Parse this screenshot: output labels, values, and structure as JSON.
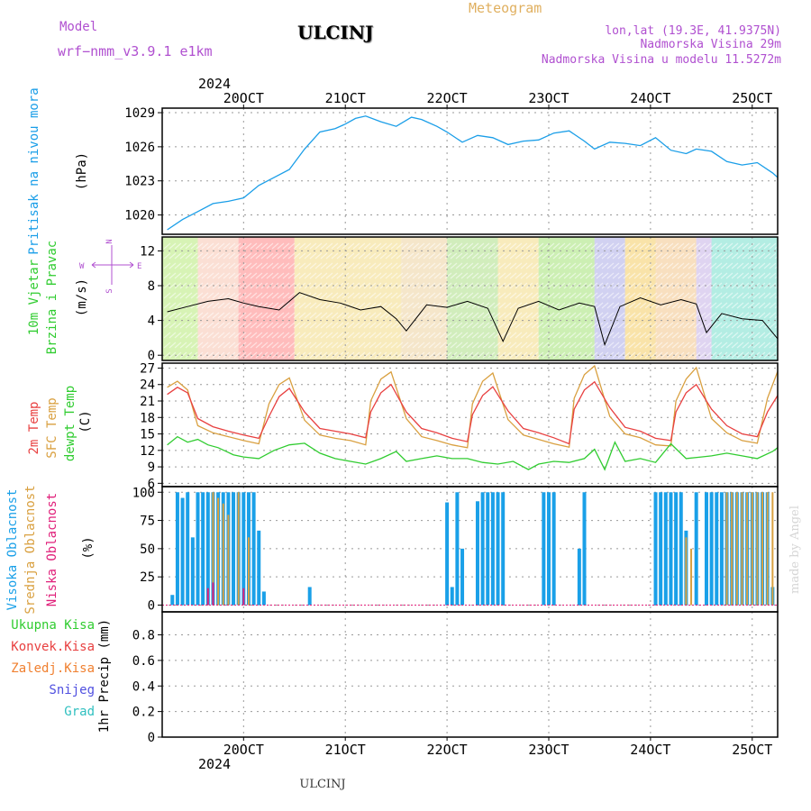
{
  "header": {
    "model_label": "Model",
    "model_name": "wrf−nmm_v3.9.1 e1km",
    "title": "ULCINJ",
    "subtitle": "Meteogram",
    "lonlat": "lon,lat (19.3E, 41.9375N)",
    "elev": "Nadmorska Visina 29m",
    "elev_model": "Nadmorska Visina u modelu 11.5272m",
    "top_year": "2024",
    "bottom_year": "2024",
    "footer": "ULCINJ",
    "watermark": "made by Angel"
  },
  "x_axis": {
    "tick_labels": [
      "20OCT",
      "21OCT",
      "22OCT",
      "23OCT",
      "24OCT",
      "25OCT"
    ],
    "range_days": [
      -0.8,
      5.25
    ]
  },
  "panels": {
    "pressure": {
      "label1": "Pritisak na nivou mora",
      "unit": "(hPa)"
    },
    "wind": {
      "label1": "10m Vjetar",
      "label2": "Brzina i Pravac",
      "unit": "(m/s)",
      "compass_n": "N",
      "compass_w": "W",
      "compass_e": "E",
      "compass_s": "S"
    },
    "temp": {
      "label1": "2m Temp",
      "label2": "SFC Temp",
      "label3": "dewpt Temp",
      "unit": "(C)"
    },
    "cloud": {
      "label1": "Visoka Oblacnost",
      "label2": "Srednja Oblacnost",
      "label3": "Niska Oblacnost",
      "unit": "(%)"
    },
    "precip": {
      "legend": [
        "Ukupna Kisa",
        "Konvek.Kisa",
        "Zaledj.Kisa",
        "Snijeg",
        "Grad"
      ],
      "unit": "1hr Precip (mm)"
    }
  },
  "colors": {
    "pressure": "#1a9ee8",
    "t2m": "#e84040",
    "sfc": "#d9a040",
    "dewpt": "#30cc30",
    "wind_mean": "#000000",
    "cloud_high": "#1aa0e8",
    "cloud_mid": "#d9a040",
    "cloud_low": "#e0207a",
    "precip_total": "#30cc30",
    "precip_conv": "#e84040",
    "precip_frz": "#f08030",
    "precip_snow": "#5050e0",
    "precip_grad": "#30c0c0"
  },
  "chart_data": [
    {
      "type": "line",
      "title": "Pritisak na nivou mora",
      "ylabel": "(hPa)",
      "ylim": [
        1018.3,
        1029.4
      ],
      "yticks": [
        1020,
        1023,
        1026,
        1029
      ],
      "x_unit": "days relative to 20OCT 00Z",
      "series": [
        {
          "name": "Pritisak na nivou mora",
          "x": [
            -0.75,
            -0.6,
            -0.45,
            -0.3,
            -0.15,
            0,
            0.15,
            0.3,
            0.45,
            0.6,
            0.75,
            0.9,
            1.0,
            1.1,
            1.2,
            1.35,
            1.5,
            1.65,
            1.75,
            1.9,
            2.0,
            2.15,
            2.3,
            2.45,
            2.6,
            2.75,
            2.9,
            3.05,
            3.2,
            3.35,
            3.45,
            3.6,
            3.75,
            3.9,
            4.05,
            4.2,
            4.35,
            4.45,
            4.6,
            4.75,
            4.9,
            5.05,
            5.2,
            5.25
          ],
          "y": [
            1018.7,
            1019.6,
            1020.3,
            1021.0,
            1021.2,
            1021.5,
            1022.6,
            1023.3,
            1024.0,
            1025.8,
            1027.3,
            1027.6,
            1028.0,
            1028.5,
            1028.7,
            1028.2,
            1027.8,
            1028.6,
            1028.4,
            1027.8,
            1027.3,
            1026.4,
            1027.0,
            1026.8,
            1026.2,
            1026.5,
            1026.6,
            1027.2,
            1027.4,
            1026.5,
            1025.8,
            1026.4,
            1026.3,
            1026.1,
            1026.8,
            1025.7,
            1025.4,
            1025.8,
            1025.6,
            1024.7,
            1024.4,
            1024.6,
            1023.7,
            1023.3
          ]
        }
      ]
    },
    {
      "type": "line",
      "title": "10m Vjetar Brzina i Pravac",
      "ylabel": "(m/s)",
      "ylim": [
        -0.6,
        13.6
      ],
      "yticks": [
        0,
        4,
        8,
        12
      ],
      "series": [
        {
          "name": "Brzina",
          "x": [
            -0.75,
            -0.55,
            -0.35,
            -0.15,
            0.0,
            0.15,
            0.35,
            0.55,
            0.75,
            0.95,
            1.15,
            1.35,
            1.5,
            1.6,
            1.8,
            2.0,
            2.2,
            2.4,
            2.55,
            2.7,
            2.9,
            3.1,
            3.3,
            3.45,
            3.55,
            3.7,
            3.9,
            4.1,
            4.3,
            4.45,
            4.55,
            4.7,
            4.9,
            5.1,
            5.25
          ],
          "y": [
            5.0,
            5.6,
            6.2,
            6.5,
            6.0,
            5.6,
            5.2,
            7.2,
            6.4,
            6.0,
            5.2,
            5.6,
            4.2,
            2.8,
            5.8,
            5.5,
            6.2,
            5.4,
            1.6,
            5.4,
            6.2,
            5.2,
            6.0,
            5.6,
            1.2,
            5.6,
            6.6,
            5.8,
            6.4,
            5.9,
            2.6,
            4.8,
            4.2,
            4.0,
            1.9
          ]
        }
      ]
    },
    {
      "type": "line",
      "title": "2m Temp / SFC Temp / dewpt Temp",
      "ylabel": "(C)",
      "ylim": [
        5.4,
        27.9
      ],
      "yticks": [
        6,
        9,
        12,
        15,
        18,
        21,
        24,
        27
      ],
      "series": [
        {
          "name": "2m Temp",
          "x": [
            -0.75,
            -0.65,
            -0.55,
            -0.45,
            -0.3,
            -0.15,
            0.0,
            0.15,
            0.25,
            0.35,
            0.45,
            0.6,
            0.75,
            0.9,
            1.05,
            1.2,
            1.25,
            1.35,
            1.45,
            1.6,
            1.75,
            1.9,
            2.05,
            2.2,
            2.25,
            2.35,
            2.45,
            2.6,
            2.75,
            2.9,
            3.05,
            3.2,
            3.25,
            3.35,
            3.45,
            3.6,
            3.75,
            3.9,
            4.05,
            4.2,
            4.25,
            4.35,
            4.45,
            4.6,
            4.75,
            4.9,
            5.05,
            5.15,
            5.25
          ],
          "y": [
            22.2,
            23.5,
            22.5,
            17.8,
            16.3,
            15.5,
            14.8,
            14.2,
            18.2,
            21.8,
            23.3,
            19.0,
            16.0,
            15.5,
            15.0,
            14.3,
            19.0,
            22.5,
            24.0,
            19.0,
            16.0,
            15.2,
            14.2,
            13.6,
            18.5,
            22.0,
            23.6,
            19.2,
            16.0,
            15.2,
            14.3,
            13.2,
            19.5,
            23.0,
            24.5,
            19.8,
            16.2,
            15.5,
            14.2,
            13.8,
            19.0,
            22.5,
            24.0,
            19.5,
            16.5,
            15.0,
            14.5,
            19.0,
            22.0
          ]
        },
        {
          "name": "SFC Temp",
          "x": [
            -0.75,
            -0.65,
            -0.55,
            -0.45,
            -0.3,
            -0.15,
            0.0,
            0.15,
            0.25,
            0.35,
            0.45,
            0.6,
            0.75,
            0.9,
            1.05,
            1.2,
            1.25,
            1.35,
            1.45,
            1.6,
            1.75,
            1.9,
            2.05,
            2.2,
            2.25,
            2.35,
            2.45,
            2.6,
            2.75,
            2.9,
            3.05,
            3.2,
            3.25,
            3.35,
            3.45,
            3.6,
            3.75,
            3.9,
            4.05,
            4.2,
            4.25,
            4.35,
            4.45,
            4.6,
            4.75,
            4.9,
            5.05,
            5.15,
            5.25
          ],
          "y": [
            23.5,
            24.6,
            23.0,
            16.5,
            15.2,
            14.5,
            13.8,
            13.2,
            20.5,
            24.0,
            25.2,
            17.5,
            14.8,
            14.2,
            13.8,
            13.0,
            21.0,
            25.0,
            26.3,
            17.8,
            14.5,
            13.8,
            13.0,
            12.5,
            20.5,
            24.6,
            26.1,
            17.6,
            14.8,
            14.0,
            13.2,
            12.6,
            21.5,
            25.8,
            27.4,
            18.2,
            15.0,
            14.3,
            13.0,
            12.8,
            21.0,
            25.0,
            27.1,
            17.8,
            15.2,
            13.8,
            13.3,
            21.5,
            26.4
          ]
        },
        {
          "name": "dewpt Temp",
          "x": [
            -0.75,
            -0.65,
            -0.55,
            -0.45,
            -0.35,
            -0.25,
            -0.1,
            0.0,
            0.15,
            0.3,
            0.45,
            0.6,
            0.75,
            0.9,
            1.05,
            1.2,
            1.35,
            1.5,
            1.6,
            1.75,
            1.9,
            2.05,
            2.2,
            2.35,
            2.5,
            2.65,
            2.8,
            2.9,
            3.05,
            3.2,
            3.35,
            3.45,
            3.55,
            3.65,
            3.75,
            3.9,
            4.05,
            4.2,
            4.35,
            4.5,
            4.6,
            4.75,
            4.9,
            5.05,
            5.2,
            5.25
          ],
          "y": [
            13.0,
            14.5,
            13.5,
            14.0,
            13.0,
            12.5,
            11.2,
            10.8,
            10.5,
            12.0,
            13.0,
            13.3,
            11.5,
            10.5,
            10.0,
            9.5,
            10.5,
            11.8,
            10.0,
            10.5,
            11.0,
            10.5,
            10.5,
            9.8,
            9.5,
            10.0,
            8.5,
            9.5,
            10.0,
            9.8,
            10.5,
            12.2,
            8.5,
            13.5,
            10.0,
            10.5,
            9.8,
            13.2,
            10.5,
            10.8,
            11.0,
            11.5,
            11.0,
            10.5,
            11.8,
            12.5
          ]
        }
      ]
    },
    {
      "type": "bar",
      "title": "Oblacnost",
      "ylabel": "(%)",
      "ylim": [
        -6,
        105
      ],
      "yticks": [
        0,
        25,
        50,
        75,
        100
      ],
      "series": [
        {
          "name": "Visoka Oblacnost",
          "x": [
            -0.7,
            -0.65,
            -0.6,
            -0.55,
            -0.5,
            -0.45,
            -0.4,
            -0.35,
            -0.3,
            -0.25,
            -0.2,
            -0.15,
            -0.1,
            -0.05,
            0.0,
            0.05,
            0.1,
            0.15,
            0.2,
            0.25,
            0.65,
            2.0,
            2.05,
            2.1,
            2.15,
            2.2,
            2.3,
            2.35,
            2.4,
            2.45,
            2.5,
            2.55,
            2.6,
            2.95,
            3.0,
            3.05,
            3.3,
            3.35,
            4.05,
            4.1,
            4.15,
            4.2,
            4.25,
            4.3,
            4.35,
            4.4,
            4.45,
            4.55,
            4.6,
            4.65,
            4.7,
            4.75,
            4.8,
            4.85,
            4.9,
            4.95,
            5.0,
            5.05,
            5.1,
            5.15,
            5.2
          ],
          "y": [
            9,
            100,
            95,
            100,
            60,
            100,
            100,
            100,
            100,
            100,
            100,
            100,
            100,
            100,
            100,
            100,
            100,
            66,
            12,
            0,
            16,
            91,
            16,
            100,
            50,
            0,
            92,
            100,
            100,
            100,
            100,
            100,
            0,
            100,
            100,
            100,
            50,
            100,
            100,
            100,
            100,
            100,
            100,
            100,
            66,
            0,
            100,
            100,
            100,
            100,
            100,
            100,
            100,
            100,
            100,
            100,
            100,
            100,
            100,
            100,
            16
          ]
        },
        {
          "name": "Srednja Oblacnost",
          "x": [
            -0.3,
            -0.25,
            -0.2,
            -0.15,
            -0.05,
            0.05,
            4.35,
            4.4,
            4.75,
            4.8,
            4.85,
            4.9,
            4.95,
            5.0,
            5.05,
            5.1,
            5.15,
            5.2
          ],
          "y": [
            100,
            95,
            90,
            80,
            100,
            60,
            60,
            50,
            100,
            100,
            100,
            100,
            100,
            100,
            100,
            100,
            100,
            100
          ]
        },
        {
          "name": "Niska Oblacnost",
          "x": [
            -0.35,
            -0.3,
            0.0
          ],
          "y": [
            15,
            20,
            15
          ]
        }
      ]
    },
    {
      "type": "line",
      "title": "1hr Precip",
      "ylabel": "1hr Precip (mm)",
      "ylim": [
        0,
        0.98
      ],
      "yticks": [
        0,
        0.2,
        0.4,
        0.6,
        0.8
      ],
      "series": [
        {
          "name": "Ukupna Kisa",
          "x": [
            -0.8,
            5.25
          ],
          "y": [
            0,
            0
          ]
        }
      ]
    }
  ]
}
